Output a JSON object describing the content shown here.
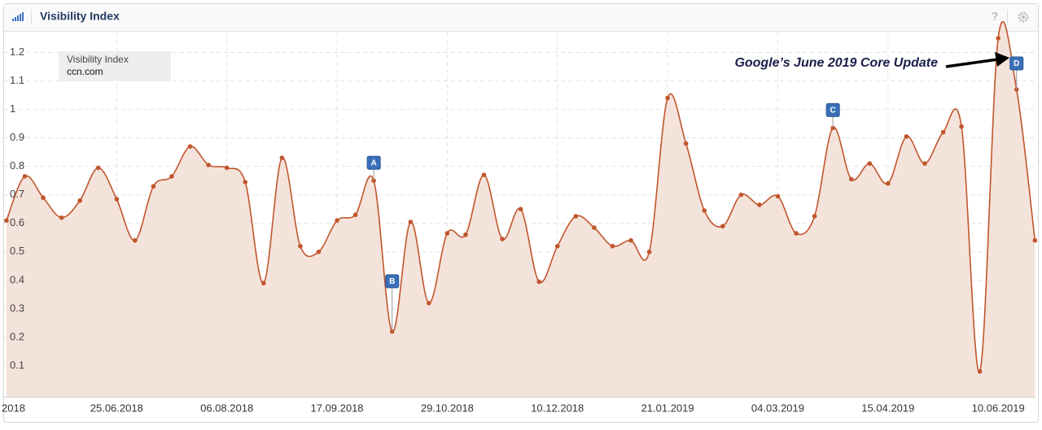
{
  "header": {
    "title": "Visibility Index",
    "help": "?"
  },
  "chart_data": {
    "type": "line",
    "legend_box": {
      "title": "Visibility Index",
      "domain": "ccn.com"
    },
    "x": [
      0,
      1,
      2,
      3,
      4,
      5,
      6,
      7,
      8,
      9,
      10,
      11,
      12,
      13,
      14,
      15,
      16,
      17,
      18,
      19,
      20,
      21,
      22,
      23,
      24,
      25,
      26,
      27,
      28,
      29,
      30,
      31,
      32,
      33,
      34,
      35,
      36,
      37,
      38,
      39,
      40,
      41,
      42,
      43,
      44,
      45,
      46,
      47,
      48,
      49,
      50,
      51,
      52,
      53,
      54,
      55,
      56
    ],
    "series": [
      {
        "name": "ccn.com",
        "color": "#c0562c",
        "fill": "#f2ded5",
        "values": [
          0.61,
          0.765,
          0.69,
          0.62,
          0.68,
          0.795,
          0.685,
          0.54,
          0.73,
          0.765,
          0.87,
          0.805,
          0.795,
          0.745,
          0.39,
          0.83,
          0.52,
          0.5,
          0.61,
          0.63,
          0.75,
          0.22,
          0.605,
          0.32,
          0.565,
          0.56,
          0.77,
          0.545,
          0.65,
          0.395,
          0.52,
          0.625,
          0.585,
          0.52,
          0.54,
          0.5,
          1.04,
          0.88,
          0.645,
          0.59,
          0.7,
          0.665,
          0.695,
          0.565,
          0.625,
          0.935,
          0.755,
          0.81,
          0.74,
          0.905,
          0.81,
          0.92,
          0.94,
          0.08,
          1.25,
          1.07,
          0.54
        ]
      }
    ],
    "xlim": [
      -0.13,
      56.03
    ],
    "ylim": [
      0,
      1.27
    ],
    "yticks": [
      0.1,
      0.2,
      0.3,
      0.4,
      0.5,
      0.6,
      0.7,
      0.8,
      0.9,
      1,
      1.1,
      1.2
    ],
    "xticks": [
      {
        "value": 0,
        "label": "2018"
      },
      {
        "value": 6,
        "label": "25.06.2018"
      },
      {
        "value": 12,
        "label": "06.08.2018"
      },
      {
        "value": 18,
        "label": "17.09.2018"
      },
      {
        "value": 24,
        "label": "29.10.2018"
      },
      {
        "value": 30,
        "label": "10.12.2018"
      },
      {
        "value": 36,
        "label": "21.01.2019"
      },
      {
        "value": 42,
        "label": "04.03.2019"
      },
      {
        "value": 48,
        "label": "15.04.2019"
      },
      {
        "value": 54,
        "label": "10.06.2019"
      }
    ],
    "grid": true,
    "events": [
      {
        "label": "A",
        "x": 20
      },
      {
        "label": "B",
        "x": 21
      },
      {
        "label": "C",
        "x": 45
      },
      {
        "label": "D",
        "x": 55
      }
    ],
    "annotation": "Google’s June 2019 Core Update"
  }
}
